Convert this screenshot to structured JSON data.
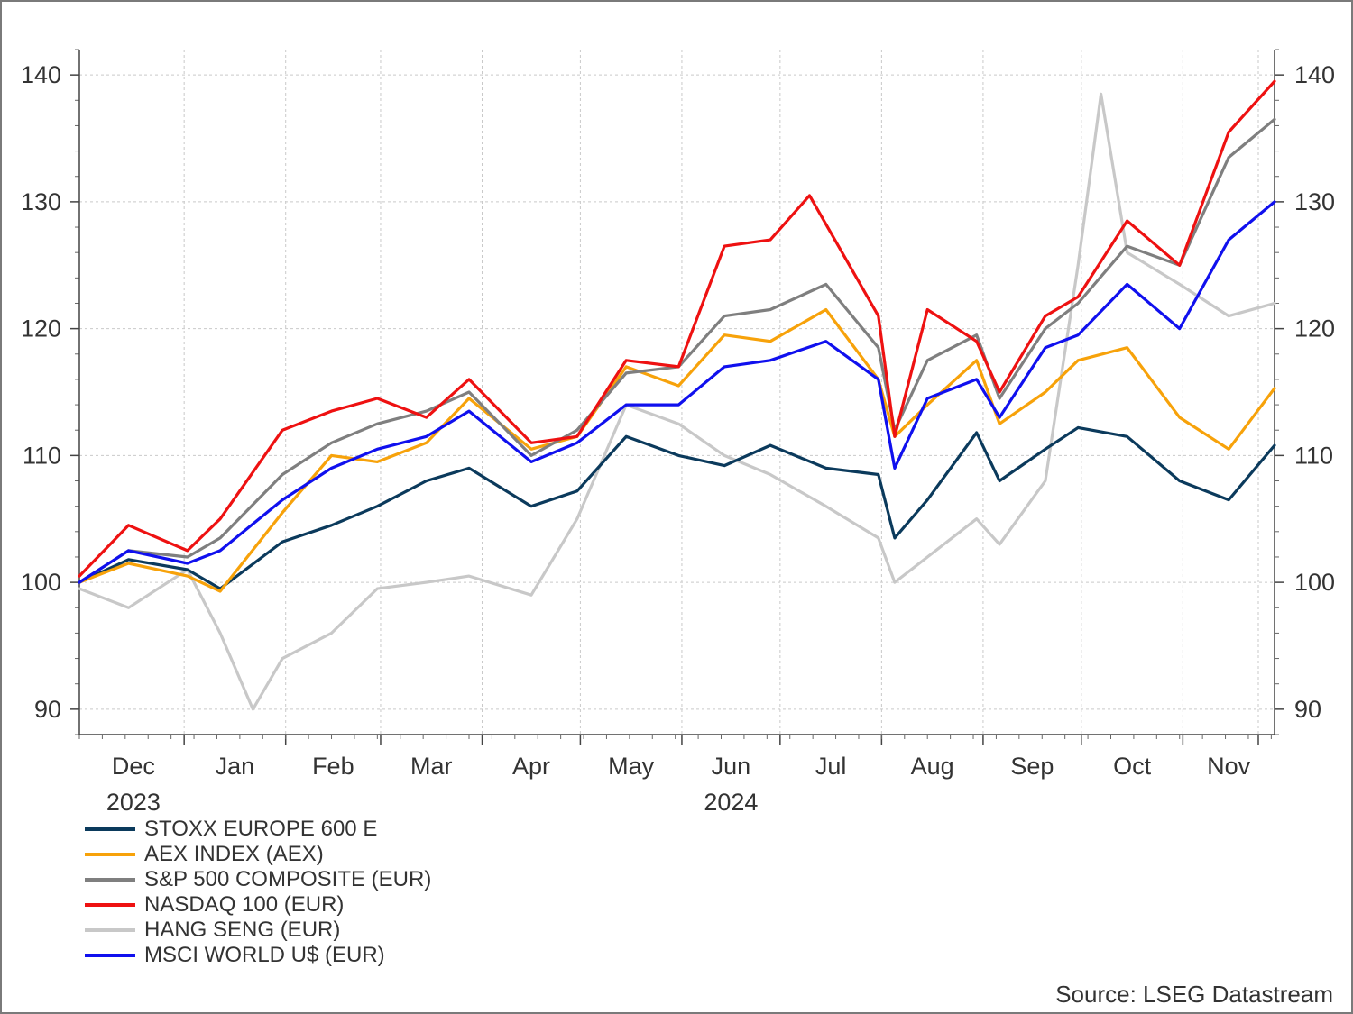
{
  "chart_data": {
    "type": "line",
    "xlabel": "",
    "ylabel": "",
    "ylim": [
      88,
      142
    ],
    "yticks": [
      90,
      100,
      110,
      120,
      130,
      140
    ],
    "grid": true,
    "legend_placement": "bottom-left",
    "x_axis": {
      "months": [
        "Dec",
        "Jan",
        "Feb",
        "Mar",
        "Apr",
        "May",
        "Jun",
        "Jul",
        "Aug",
        "Sep",
        "Oct",
        "Nov"
      ],
      "year_labels": [
        {
          "text": "2023",
          "month": "Dec"
        },
        {
          "text": "2024",
          "month": "Jun"
        }
      ],
      "start": "2023-11-30",
      "end": "2024-11-29"
    },
    "series": [
      {
        "name": "STOXX EUROPE 600 E",
        "color": "#0b3a5c",
        "points": [
          [
            "2023-11-30",
            100.0
          ],
          [
            "2023-12-15",
            101.8
          ],
          [
            "2024-01-02",
            101.0
          ],
          [
            "2024-01-12",
            99.5
          ],
          [
            "2024-01-31",
            103.2
          ],
          [
            "2024-02-15",
            104.5
          ],
          [
            "2024-02-29",
            106.0
          ],
          [
            "2024-03-15",
            108.0
          ],
          [
            "2024-03-28",
            109.0
          ],
          [
            "2024-04-16",
            106.0
          ],
          [
            "2024-04-30",
            107.2
          ],
          [
            "2024-05-15",
            111.5
          ],
          [
            "2024-05-31",
            110.0
          ],
          [
            "2024-06-14",
            109.2
          ],
          [
            "2024-06-28",
            110.8
          ],
          [
            "2024-07-15",
            109.0
          ],
          [
            "2024-07-31",
            108.5
          ],
          [
            "2024-08-05",
            103.5
          ],
          [
            "2024-08-15",
            106.5
          ],
          [
            "2024-08-30",
            111.8
          ],
          [
            "2024-09-06",
            108.0
          ],
          [
            "2024-09-20",
            110.5
          ],
          [
            "2024-09-30",
            112.2
          ],
          [
            "2024-10-15",
            111.5
          ],
          [
            "2024-10-31",
            108.0
          ],
          [
            "2024-11-15",
            106.5
          ],
          [
            "2024-11-29",
            110.8
          ]
        ]
      },
      {
        "name": "AEX INDEX (AEX)",
        "color": "#f7a20a",
        "points": [
          [
            "2023-11-30",
            100.0
          ],
          [
            "2023-12-15",
            101.5
          ],
          [
            "2024-01-02",
            100.5
          ],
          [
            "2024-01-12",
            99.3
          ],
          [
            "2024-01-31",
            105.5
          ],
          [
            "2024-02-15",
            110.0
          ],
          [
            "2024-02-29",
            109.5
          ],
          [
            "2024-03-15",
            111.0
          ],
          [
            "2024-03-28",
            114.5
          ],
          [
            "2024-04-16",
            110.5
          ],
          [
            "2024-04-30",
            111.5
          ],
          [
            "2024-05-15",
            117.0
          ],
          [
            "2024-05-31",
            115.5
          ],
          [
            "2024-06-14",
            119.5
          ],
          [
            "2024-06-28",
            119.0
          ],
          [
            "2024-07-15",
            121.5
          ],
          [
            "2024-07-31",
            116.0
          ],
          [
            "2024-08-05",
            111.5
          ],
          [
            "2024-08-15",
            114.0
          ],
          [
            "2024-08-30",
            117.5
          ],
          [
            "2024-09-06",
            112.5
          ],
          [
            "2024-09-20",
            115.0
          ],
          [
            "2024-09-30",
            117.5
          ],
          [
            "2024-10-15",
            118.5
          ],
          [
            "2024-10-31",
            113.0
          ],
          [
            "2024-11-15",
            110.5
          ],
          [
            "2024-11-29",
            115.3
          ]
        ]
      },
      {
        "name": "S&P 500 COMPOSITE (EUR)",
        "color": "#7f7f7f",
        "points": [
          [
            "2023-11-30",
            100.0
          ],
          [
            "2023-12-15",
            102.5
          ],
          [
            "2024-01-02",
            102.0
          ],
          [
            "2024-01-12",
            103.5
          ],
          [
            "2024-01-31",
            108.5
          ],
          [
            "2024-02-15",
            111.0
          ],
          [
            "2024-02-29",
            112.5
          ],
          [
            "2024-03-15",
            113.5
          ],
          [
            "2024-03-28",
            115.0
          ],
          [
            "2024-04-16",
            110.0
          ],
          [
            "2024-04-30",
            112.0
          ],
          [
            "2024-05-15",
            116.5
          ],
          [
            "2024-05-31",
            117.0
          ],
          [
            "2024-06-14",
            121.0
          ],
          [
            "2024-06-28",
            121.5
          ],
          [
            "2024-07-15",
            123.5
          ],
          [
            "2024-07-31",
            118.5
          ],
          [
            "2024-08-05",
            112.0
          ],
          [
            "2024-08-15",
            117.5
          ],
          [
            "2024-08-30",
            119.5
          ],
          [
            "2024-09-06",
            114.5
          ],
          [
            "2024-09-20",
            120.0
          ],
          [
            "2024-09-30",
            122.0
          ],
          [
            "2024-10-15",
            126.5
          ],
          [
            "2024-10-31",
            125.0
          ],
          [
            "2024-11-15",
            133.5
          ],
          [
            "2024-11-29",
            136.5
          ]
        ]
      },
      {
        "name": "NASDAQ 100 (EUR)",
        "color": "#ee1111",
        "points": [
          [
            "2023-11-30",
            100.5
          ],
          [
            "2023-12-15",
            104.5
          ],
          [
            "2024-01-02",
            102.5
          ],
          [
            "2024-01-12",
            105.0
          ],
          [
            "2024-01-31",
            112.0
          ],
          [
            "2024-02-15",
            113.5
          ],
          [
            "2024-02-29",
            114.5
          ],
          [
            "2024-03-15",
            113.0
          ],
          [
            "2024-03-28",
            116.0
          ],
          [
            "2024-04-16",
            111.0
          ],
          [
            "2024-04-30",
            111.5
          ],
          [
            "2024-05-15",
            117.5
          ],
          [
            "2024-05-31",
            117.0
          ],
          [
            "2024-06-14",
            126.5
          ],
          [
            "2024-06-28",
            127.0
          ],
          [
            "2024-07-10",
            130.5
          ],
          [
            "2024-07-31",
            121.0
          ],
          [
            "2024-08-05",
            111.5
          ],
          [
            "2024-08-15",
            121.5
          ],
          [
            "2024-08-30",
            119.0
          ],
          [
            "2024-09-06",
            115.0
          ],
          [
            "2024-09-20",
            121.0
          ],
          [
            "2024-09-30",
            122.5
          ],
          [
            "2024-10-15",
            128.5
          ],
          [
            "2024-10-31",
            125.0
          ],
          [
            "2024-11-15",
            135.5
          ],
          [
            "2024-11-29",
            139.5
          ]
        ]
      },
      {
        "name": "HANG SENG (EUR)",
        "color": "#c8c8c8",
        "points": [
          [
            "2023-11-30",
            99.5
          ],
          [
            "2023-12-15",
            98.0
          ],
          [
            "2024-01-02",
            101.0
          ],
          [
            "2024-01-12",
            96.0
          ],
          [
            "2024-01-22",
            90.0
          ],
          [
            "2024-01-31",
            94.0
          ],
          [
            "2024-02-15",
            96.0
          ],
          [
            "2024-02-29",
            99.5
          ],
          [
            "2024-03-15",
            100.0
          ],
          [
            "2024-03-28",
            100.5
          ],
          [
            "2024-04-16",
            99.0
          ],
          [
            "2024-04-30",
            105.0
          ],
          [
            "2024-05-15",
            114.0
          ],
          [
            "2024-05-31",
            112.5
          ],
          [
            "2024-06-14",
            110.0
          ],
          [
            "2024-06-28",
            108.5
          ],
          [
            "2024-07-15",
            106.0
          ],
          [
            "2024-07-31",
            103.5
          ],
          [
            "2024-08-05",
            100.0
          ],
          [
            "2024-08-15",
            102.0
          ],
          [
            "2024-08-30",
            105.0
          ],
          [
            "2024-09-06",
            103.0
          ],
          [
            "2024-09-20",
            108.0
          ],
          [
            "2024-09-30",
            125.0
          ],
          [
            "2024-10-07",
            138.5
          ],
          [
            "2024-10-15",
            126.0
          ],
          [
            "2024-10-31",
            123.5
          ],
          [
            "2024-11-15",
            121.0
          ],
          [
            "2024-11-29",
            122.0
          ]
        ]
      },
      {
        "name": "MSCI WORLD U$ (EUR)",
        "color": "#1010ee",
        "points": [
          [
            "2023-11-30",
            100.0
          ],
          [
            "2023-12-15",
            102.5
          ],
          [
            "2024-01-02",
            101.5
          ],
          [
            "2024-01-12",
            102.5
          ],
          [
            "2024-01-31",
            106.5
          ],
          [
            "2024-02-15",
            109.0
          ],
          [
            "2024-02-29",
            110.5
          ],
          [
            "2024-03-15",
            111.5
          ],
          [
            "2024-03-28",
            113.5
          ],
          [
            "2024-04-16",
            109.5
          ],
          [
            "2024-04-30",
            111.0
          ],
          [
            "2024-05-15",
            114.0
          ],
          [
            "2024-05-31",
            114.0
          ],
          [
            "2024-06-14",
            117.0
          ],
          [
            "2024-06-28",
            117.5
          ],
          [
            "2024-07-15",
            119.0
          ],
          [
            "2024-07-31",
            116.0
          ],
          [
            "2024-08-05",
            109.0
          ],
          [
            "2024-08-15",
            114.5
          ],
          [
            "2024-08-30",
            116.0
          ],
          [
            "2024-09-06",
            113.0
          ],
          [
            "2024-09-20",
            118.5
          ],
          [
            "2024-09-30",
            119.5
          ],
          [
            "2024-10-15",
            123.5
          ],
          [
            "2024-10-31",
            120.0
          ],
          [
            "2024-11-15",
            127.0
          ],
          [
            "2024-11-29",
            130.0
          ]
        ]
      }
    ],
    "source": "Source: LSEG Datastream"
  }
}
